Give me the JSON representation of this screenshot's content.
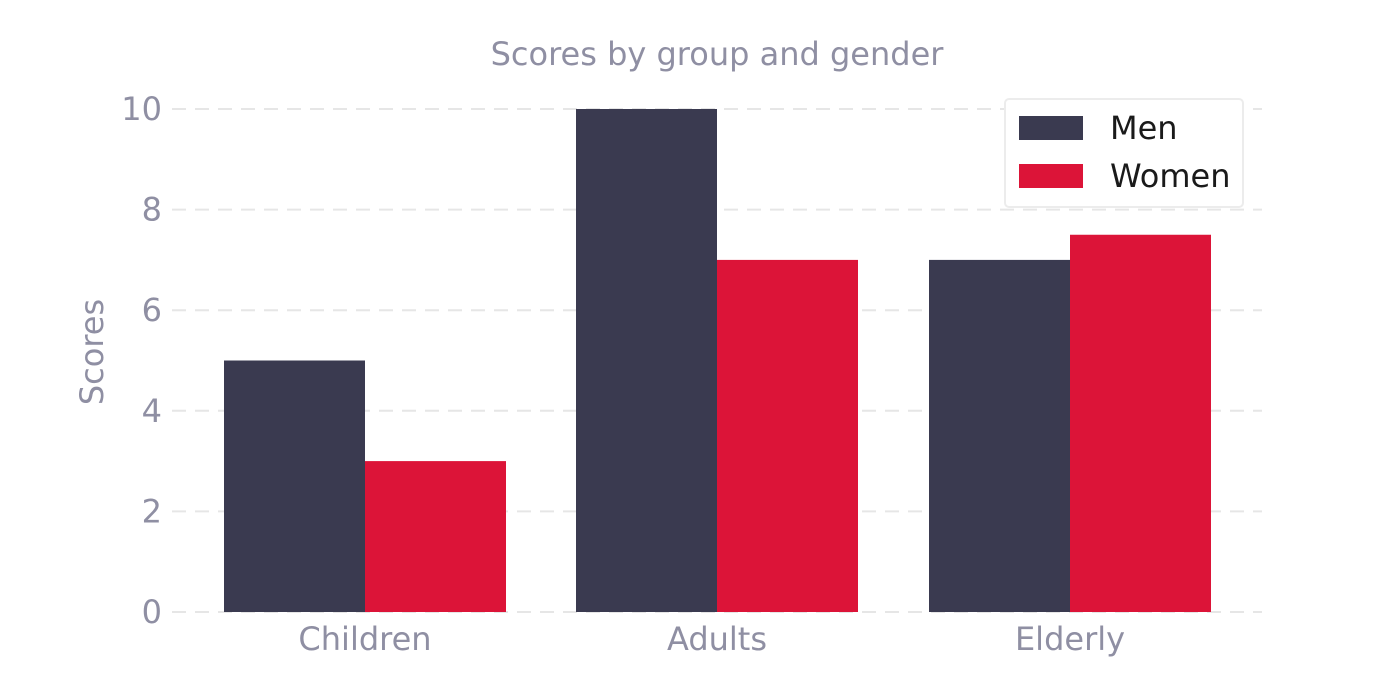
{
  "chart_data": {
    "type": "bar",
    "title": "Scores by group and gender",
    "xlabel": "",
    "ylabel": "Scores",
    "categories": [
      "Children",
      "Adults",
      "Elderly"
    ],
    "series": [
      {
        "name": "Men",
        "values": [
          5,
          10,
          7
        ],
        "color": "#3a3a50"
      },
      {
        "name": "Women",
        "values": [
          3,
          7,
          7.5
        ],
        "color": "#dc1438"
      }
    ],
    "ylim": [
      0,
      10
    ],
    "yticks": [
      0,
      2,
      4,
      6,
      8,
      10
    ],
    "grid": true,
    "grid_style": "dashed-horizontal",
    "legend_position": "top-right",
    "colors": {
      "text_muted": "#8f8fa3",
      "grid": "#e6e6e6",
      "legend_text": "#1a1a1a"
    }
  }
}
